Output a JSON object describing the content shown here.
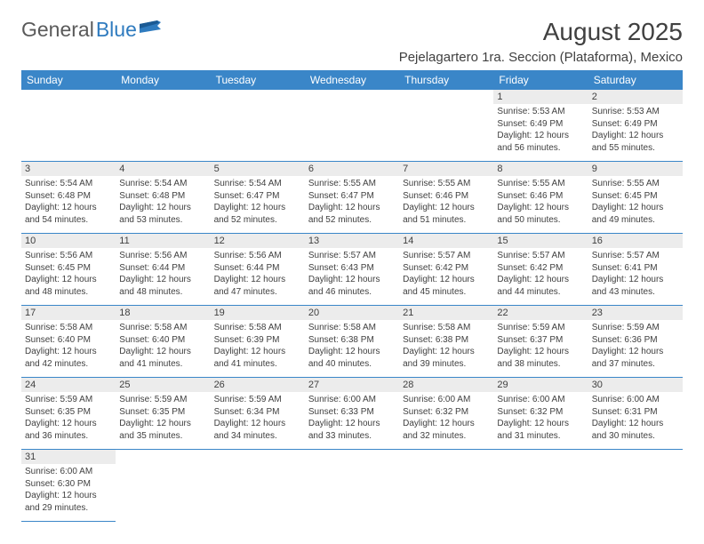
{
  "brand": {
    "word1": "General",
    "word2": "Blue"
  },
  "title": "August 2025",
  "subtitle": "Pejelagartero 1ra. Seccion (Plataforma), Mexico",
  "header_bg": "#3a86c8",
  "dayHeaders": [
    "Sunday",
    "Monday",
    "Tuesday",
    "Wednesday",
    "Thursday",
    "Friday",
    "Saturday"
  ],
  "weeks": [
    [
      null,
      null,
      null,
      null,
      null,
      {
        "n": "1",
        "sr": "5:53 AM",
        "ss": "6:49 PM",
        "dl": "12 hours and 56 minutes."
      },
      {
        "n": "2",
        "sr": "5:53 AM",
        "ss": "6:49 PM",
        "dl": "12 hours and 55 minutes."
      }
    ],
    [
      {
        "n": "3",
        "sr": "5:54 AM",
        "ss": "6:48 PM",
        "dl": "12 hours and 54 minutes."
      },
      {
        "n": "4",
        "sr": "5:54 AM",
        "ss": "6:48 PM",
        "dl": "12 hours and 53 minutes."
      },
      {
        "n": "5",
        "sr": "5:54 AM",
        "ss": "6:47 PM",
        "dl": "12 hours and 52 minutes."
      },
      {
        "n": "6",
        "sr": "5:55 AM",
        "ss": "6:47 PM",
        "dl": "12 hours and 52 minutes."
      },
      {
        "n": "7",
        "sr": "5:55 AM",
        "ss": "6:46 PM",
        "dl": "12 hours and 51 minutes."
      },
      {
        "n": "8",
        "sr": "5:55 AM",
        "ss": "6:46 PM",
        "dl": "12 hours and 50 minutes."
      },
      {
        "n": "9",
        "sr": "5:55 AM",
        "ss": "6:45 PM",
        "dl": "12 hours and 49 minutes."
      }
    ],
    [
      {
        "n": "10",
        "sr": "5:56 AM",
        "ss": "6:45 PM",
        "dl": "12 hours and 48 minutes."
      },
      {
        "n": "11",
        "sr": "5:56 AM",
        "ss": "6:44 PM",
        "dl": "12 hours and 48 minutes."
      },
      {
        "n": "12",
        "sr": "5:56 AM",
        "ss": "6:44 PM",
        "dl": "12 hours and 47 minutes."
      },
      {
        "n": "13",
        "sr": "5:57 AM",
        "ss": "6:43 PM",
        "dl": "12 hours and 46 minutes."
      },
      {
        "n": "14",
        "sr": "5:57 AM",
        "ss": "6:42 PM",
        "dl": "12 hours and 45 minutes."
      },
      {
        "n": "15",
        "sr": "5:57 AM",
        "ss": "6:42 PM",
        "dl": "12 hours and 44 minutes."
      },
      {
        "n": "16",
        "sr": "5:57 AM",
        "ss": "6:41 PM",
        "dl": "12 hours and 43 minutes."
      }
    ],
    [
      {
        "n": "17",
        "sr": "5:58 AM",
        "ss": "6:40 PM",
        "dl": "12 hours and 42 minutes."
      },
      {
        "n": "18",
        "sr": "5:58 AM",
        "ss": "6:40 PM",
        "dl": "12 hours and 41 minutes."
      },
      {
        "n": "19",
        "sr": "5:58 AM",
        "ss": "6:39 PM",
        "dl": "12 hours and 41 minutes."
      },
      {
        "n": "20",
        "sr": "5:58 AM",
        "ss": "6:38 PM",
        "dl": "12 hours and 40 minutes."
      },
      {
        "n": "21",
        "sr": "5:58 AM",
        "ss": "6:38 PM",
        "dl": "12 hours and 39 minutes."
      },
      {
        "n": "22",
        "sr": "5:59 AM",
        "ss": "6:37 PM",
        "dl": "12 hours and 38 minutes."
      },
      {
        "n": "23",
        "sr": "5:59 AM",
        "ss": "6:36 PM",
        "dl": "12 hours and 37 minutes."
      }
    ],
    [
      {
        "n": "24",
        "sr": "5:59 AM",
        "ss": "6:35 PM",
        "dl": "12 hours and 36 minutes."
      },
      {
        "n": "25",
        "sr": "5:59 AM",
        "ss": "6:35 PM",
        "dl": "12 hours and 35 minutes."
      },
      {
        "n": "26",
        "sr": "5:59 AM",
        "ss": "6:34 PM",
        "dl": "12 hours and 34 minutes."
      },
      {
        "n": "27",
        "sr": "6:00 AM",
        "ss": "6:33 PM",
        "dl": "12 hours and 33 minutes."
      },
      {
        "n": "28",
        "sr": "6:00 AM",
        "ss": "6:32 PM",
        "dl": "12 hours and 32 minutes."
      },
      {
        "n": "29",
        "sr": "6:00 AM",
        "ss": "6:32 PM",
        "dl": "12 hours and 31 minutes."
      },
      {
        "n": "30",
        "sr": "6:00 AM",
        "ss": "6:31 PM",
        "dl": "12 hours and 30 minutes."
      }
    ],
    [
      {
        "n": "31",
        "sr": "6:00 AM",
        "ss": "6:30 PM",
        "dl": "12 hours and 29 minutes."
      },
      null,
      null,
      null,
      null,
      null,
      null
    ]
  ],
  "labels": {
    "sunrise": "Sunrise: ",
    "sunset": "Sunset: ",
    "daylight": "Daylight: "
  }
}
